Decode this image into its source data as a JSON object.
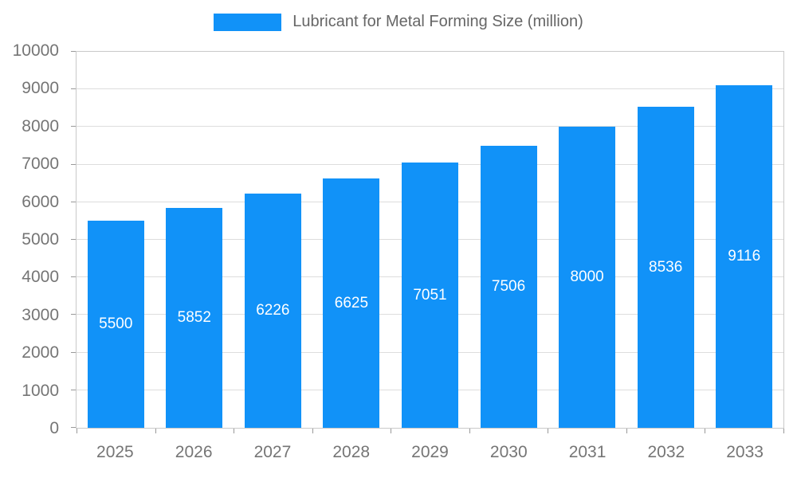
{
  "chart_data": {
    "type": "bar",
    "legend": "Lubricant for Metal Forming Size (million)",
    "categories": [
      "2025",
      "2026",
      "2027",
      "2028",
      "2029",
      "2030",
      "2031",
      "2032",
      "2033"
    ],
    "values": [
      5500,
      5852,
      6226,
      6625,
      7051,
      7506,
      8000,
      8536,
      9116
    ],
    "ylim": [
      0,
      10000
    ],
    "ytick_step": 1000,
    "grid": true,
    "legend_position": "top",
    "bar_color": "#1192f8",
    "bar_label_color": "#ffffff",
    "axis_text_color": "#757575",
    "gridline_color": "#dddddd"
  }
}
